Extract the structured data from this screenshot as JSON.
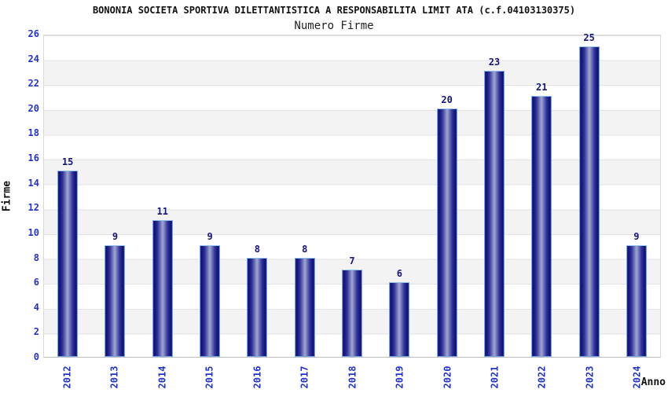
{
  "header": {
    "title": "BONONIA SOCIETA SPORTIVA DILETTANTISTICA A RESPONSABILITA LIMIT ATA (c.f.04103130375)",
    "subtitle": "Numero Firme"
  },
  "chart_data": {
    "type": "bar",
    "title": "Numero Firme",
    "categories": [
      "2012",
      "2013",
      "2014",
      "2015",
      "2016",
      "2017",
      "2018",
      "2019",
      "2020",
      "2021",
      "2022",
      "2023",
      "2024"
    ],
    "values": [
      15,
      9,
      11,
      9,
      8,
      8,
      7,
      6,
      20,
      23,
      21,
      25,
      9
    ],
    "xlabel": "Anno",
    "ylabel": "Firme",
    "ylim": [
      0,
      26
    ],
    "y_ticks": [
      0,
      2,
      4,
      6,
      8,
      10,
      12,
      14,
      16,
      18,
      20,
      22,
      24,
      26
    ],
    "grid": "horizontal gridlines with alternating white/gray bands",
    "legend_position": "none",
    "colors": {
      "bar_dark": "#12126e",
      "bar_light": "#a3a8d2",
      "bar_outline": "#74a7e0",
      "value_label": "#15157d",
      "axis_tick_label": "#2233cc",
      "band_gray": "#f3f3f3",
      "gridline": "#e2e2e2"
    }
  }
}
